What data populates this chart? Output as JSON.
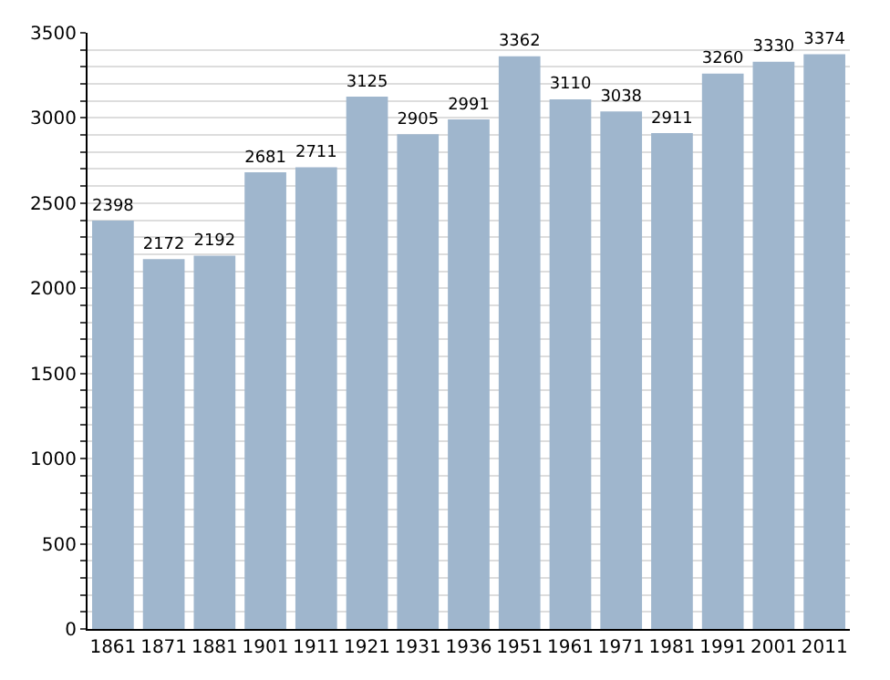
{
  "chart_data": {
    "type": "bar",
    "categories": [
      "1861",
      "1871",
      "1881",
      "1901",
      "1911",
      "1921",
      "1931",
      "1936",
      "1951",
      "1961",
      "1971",
      "1981",
      "1991",
      "2001",
      "2011"
    ],
    "values": [
      2398,
      2172,
      2192,
      2681,
      2711,
      3125,
      2905,
      2991,
      3362,
      3110,
      3038,
      2911,
      3260,
      3330,
      3374
    ],
    "color": "#9fb6cd",
    "data_labels": true,
    "grid": "y",
    "ylim": [
      0,
      3500
    ],
    "yticks": [
      0,
      {
        "value": 100,
        "label": null
      },
      {
        "value": 200,
        "label": null
      },
      {
        "value": 300,
        "label": null
      },
      {
        "value": 400,
        "label": null
      },
      500,
      {
        "value": 600,
        "label": null
      },
      {
        "value": 700,
        "label": null
      },
      {
        "value": 800,
        "label": null
      },
      {
        "value": 900,
        "label": null
      },
      1000,
      {
        "value": 1100,
        "label": null
      },
      {
        "value": 1200,
        "label": null
      },
      {
        "value": 1300,
        "label": null
      },
      {
        "value": 1400,
        "label": null
      },
      1500,
      {
        "value": 1600,
        "label": null
      },
      {
        "value": 1700,
        "label": null
      },
      {
        "value": 1800,
        "label": null
      },
      {
        "value": 1900,
        "label": null
      },
      2000,
      {
        "value": 2100,
        "label": null
      },
      {
        "value": 2200,
        "label": null
      },
      {
        "value": 2300,
        "label": null
      },
      {
        "value": 2400,
        "label": null
      },
      2500,
      {
        "value": 2600,
        "label": null
      },
      {
        "value": 2700,
        "label": null
      },
      {
        "value": 2800,
        "label": null
      },
      {
        "value": 2900,
        "label": null
      },
      3000,
      {
        "value": 3100,
        "label": null
      },
      {
        "value": 3200,
        "label": null
      },
      {
        "value": 3300,
        "label": null
      },
      {
        "value": 3400,
        "label": null
      },
      3500
    ]
  }
}
